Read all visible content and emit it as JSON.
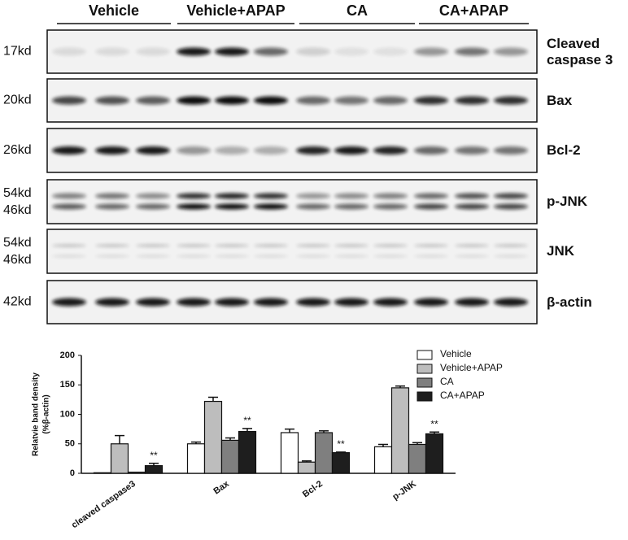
{
  "blot": {
    "groups": [
      "Vehicle",
      "Vehicle+APAP",
      "CA",
      "CA+APAP"
    ],
    "rows": [
      {
        "sizes": [
          "17kd"
        ],
        "protein": "Cleaved caspase 3"
      },
      {
        "sizes": [
          "20kd"
        ],
        "protein": "Bax"
      },
      {
        "sizes": [
          "26kd"
        ],
        "protein": "Bcl-2"
      },
      {
        "sizes": [
          "54kd",
          "46kd"
        ],
        "protein": "p-JNK"
      },
      {
        "sizes": [
          "54kd",
          "46kd"
        ],
        "protein": "JNK"
      },
      {
        "sizes": [
          "42kd"
        ],
        "protein": "β-actin"
      }
    ]
  },
  "chart_data": {
    "type": "bar",
    "y_label": [
      "Relatvie band density",
      "(%β-actin)"
    ],
    "categories": [
      "cleaved caspase3",
      "Bax",
      "Bcl-2",
      "p-JNK"
    ],
    "series": [
      {
        "name": "Vehicle",
        "color": "#ffffff",
        "values": [
          1,
          50,
          69,
          45
        ],
        "errors": [
          0,
          3,
          6,
          4
        ]
      },
      {
        "name": "Vehicle+APAP",
        "color": "#bdbdbd",
        "values": [
          50,
          122,
          19,
          145
        ],
        "errors": [
          14,
          7,
          2,
          3
        ]
      },
      {
        "name": "CA",
        "color": "#7f7f7f",
        "values": [
          2,
          56,
          69,
          49
        ],
        "errors": [
          0,
          4,
          3,
          3
        ]
      },
      {
        "name": "CA+APAP",
        "color": "#1e1e1e",
        "values": [
          13,
          71,
          35,
          67
        ],
        "errors": [
          4,
          5,
          1,
          3
        ],
        "significance": [
          "**",
          "**",
          "**",
          "**"
        ]
      }
    ],
    "ylim": [
      0,
      200
    ],
    "yticks": [
      0,
      50,
      100,
      150,
      200
    ]
  }
}
